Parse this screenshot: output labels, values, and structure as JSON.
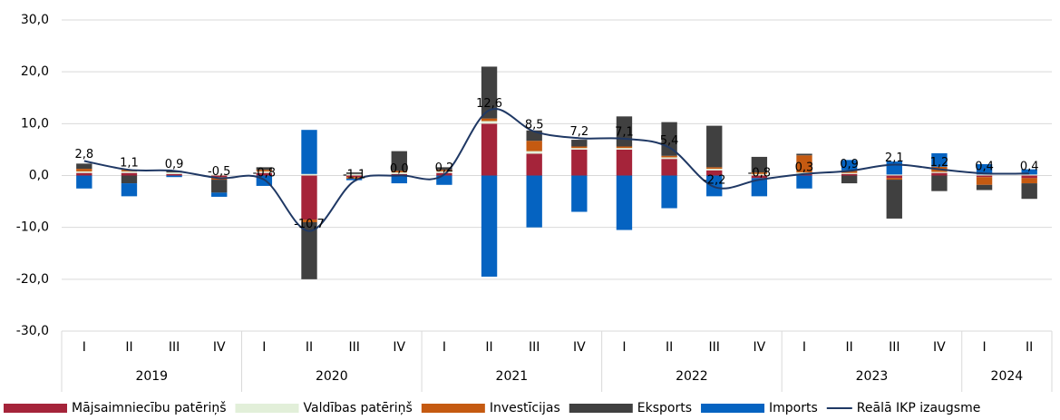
{
  "chart_data": {
    "type": "stacked-bar-line",
    "categories": [
      "I",
      "II",
      "III",
      "IV",
      "I",
      "II",
      "III",
      "IV",
      "I",
      "II",
      "III",
      "IV",
      "I",
      "II",
      "III",
      "IV",
      "I",
      "II",
      "III",
      "IV",
      "I",
      "II"
    ],
    "groups": [
      "2019",
      "2020",
      "2021",
      "2022",
      "2023",
      "2024"
    ],
    "ylim": [
      -30,
      30
    ],
    "yticks": [
      {
        "value": -30,
        "label": "-30,0"
      },
      {
        "value": -20,
        "label": "-20,0"
      },
      {
        "value": -10,
        "label": "-10,0"
      },
      {
        "value": 0,
        "label": "0,0"
      },
      {
        "value": 10,
        "label": "10,0"
      },
      {
        "value": 20,
        "label": "20,0"
      },
      {
        "value": 30,
        "label": "30,0"
      }
    ],
    "series": [
      {
        "name": "Mājsaimniecību patēriņš",
        "color": "#a5243a",
        "values": [
          0.5,
          0.5,
          0.3,
          -0.3,
          0.5,
          -8.5,
          -0.3,
          0.3,
          0.5,
          10,
          4.2,
          5,
          5,
          3.2,
          1,
          -0.5,
          0.3,
          0.3,
          -0.5,
          0.5,
          -0.3,
          -0.5
        ]
      },
      {
        "name": "Valdības patēriņš",
        "color": "#e2efd9",
        "values": [
          0.3,
          0.3,
          0.3,
          0.2,
          0.3,
          0.3,
          0.3,
          0.3,
          0.3,
          0.5,
          0.5,
          0.3,
          0.3,
          0.3,
          0.3,
          0.3,
          0.3,
          0.2,
          0.2,
          0.2,
          0.2,
          0.2
        ]
      },
      {
        "name": "Investīcijas",
        "color": "#c55a11",
        "values": [
          0.5,
          0.3,
          0,
          -0.5,
          0.3,
          -0.5,
          -0.3,
          0.3,
          0.3,
          0.5,
          2,
          0.3,
          0.3,
          0.3,
          0.3,
          0.3,
          3.3,
          0.5,
          -0.3,
          1,
          -1.5,
          -1
        ]
      },
      {
        "name": "Eksports",
        "color": "#404040",
        "values": [
          1,
          -1.5,
          0.3,
          -2.5,
          0.5,
          -11,
          0.3,
          3.8,
          0.5,
          10,
          2,
          1.3,
          5.8,
          6.5,
          8,
          3,
          0.3,
          -1.5,
          -7.5,
          -3,
          -1,
          -3
        ]
      },
      {
        "name": "Imports",
        "color": "#0563c1",
        "values": [
          -2.5,
          -2.5,
          -0.3,
          -0.8,
          -2,
          8.5,
          -0.3,
          -1.5,
          -1.8,
          -19.5,
          -10,
          -7,
          -10.5,
          -6.3,
          -4,
          -3.5,
          -2.5,
          2,
          2.5,
          2.6,
          2,
          1
        ]
      },
      {
        "name": "Reālā IKP izaugsme",
        "color": "#1f3864",
        "kind": "line",
        "values": [
          2.8,
          1.1,
          0.9,
          -0.5,
          -0.8,
          -10.7,
          -1.1,
          0.0,
          0.2,
          12.6,
          8.5,
          7.2,
          7.1,
          5.4,
          -2.2,
          -0.8,
          0.3,
          0.9,
          2.1,
          1.2,
          0.4,
          0.4
        ],
        "value_labels": [
          "2,8",
          "1,1",
          "0,9",
          "-0,5",
          "-0,8",
          "-10,7",
          "-1,1",
          "0,0",
          "0,2",
          "12,6",
          "8,5",
          "7,2",
          "7,1",
          "5,4",
          "-2,2",
          "-0,8",
          "0,3",
          "0,9",
          "2,1",
          "1,2",
          "0,4",
          "0,4"
        ]
      }
    ]
  }
}
